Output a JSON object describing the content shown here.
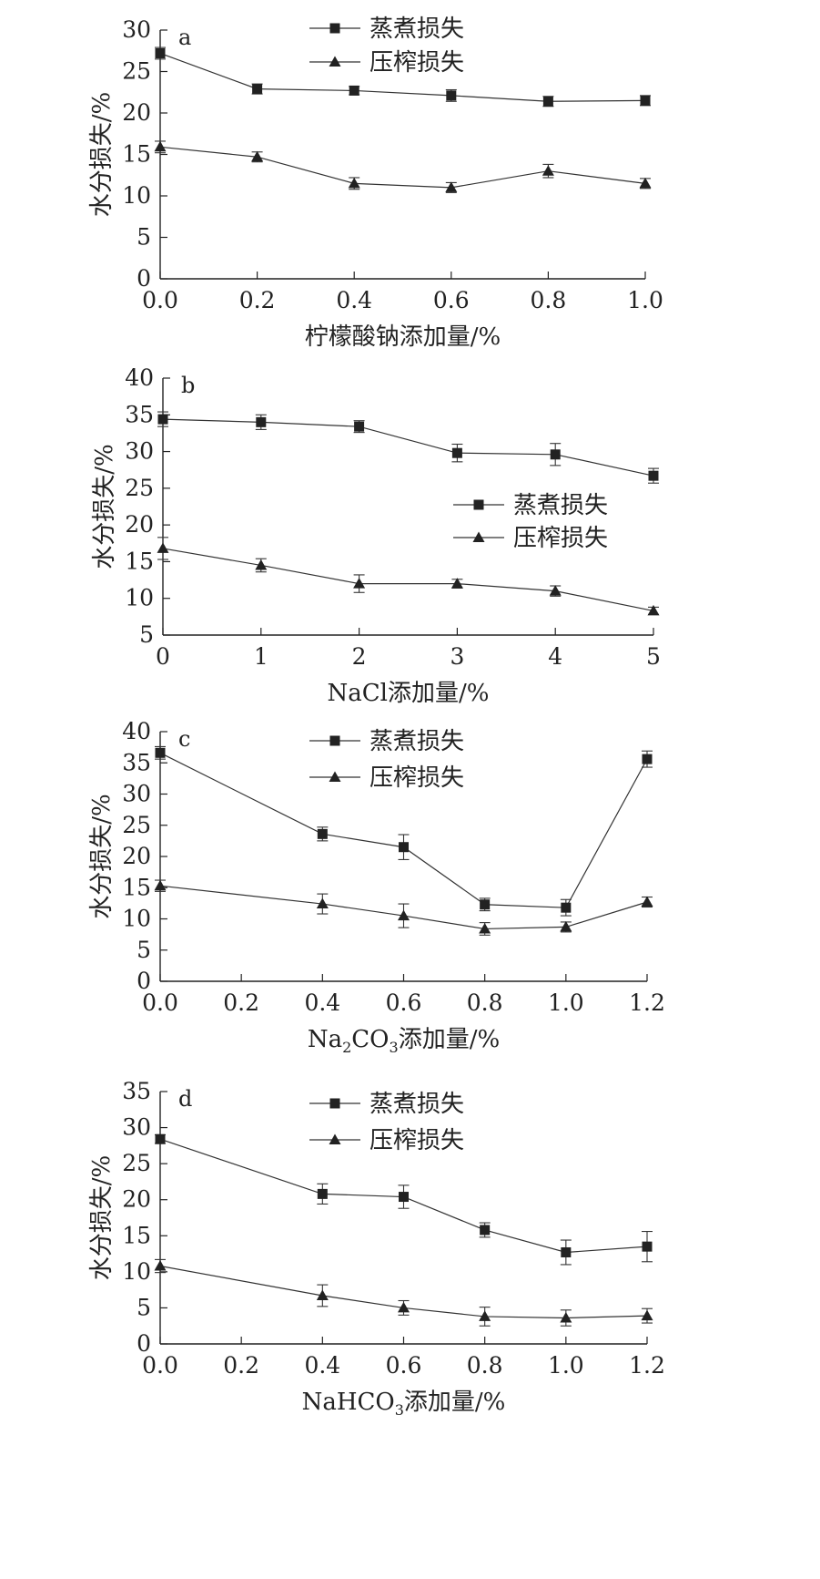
{
  "chart_data": [
    {
      "type": "line",
      "panel_label": "a",
      "xlabel": "柠檬酸钠添加量/%",
      "ylabel": "水分损失/%",
      "x": [
        0.0,
        0.2,
        0.4,
        0.6,
        0.8,
        1.0
      ],
      "xticks": [
        "0.0",
        "0.2",
        "0.4",
        "0.6",
        "0.8",
        "1.0"
      ],
      "xlim": [
        0,
        1.0
      ],
      "ylim": [
        0,
        30
      ],
      "yticks": [
        "0",
        "5",
        "10",
        "15",
        "20",
        "25",
        "30"
      ],
      "legend_position": "top-center",
      "series": [
        {
          "name": "蒸煮损失",
          "marker": "square",
          "values": [
            27.2,
            22.9,
            22.7,
            22.1,
            21.4,
            21.5
          ],
          "errors": [
            0.7,
            0.6,
            0.5,
            0.7,
            0.6,
            0.6
          ]
        },
        {
          "name": "压榨损失",
          "marker": "triangle",
          "values": [
            15.9,
            14.7,
            11.5,
            11.0,
            13.0,
            11.5
          ],
          "errors": [
            0.7,
            0.6,
            0.7,
            0.6,
            0.8,
            0.6
          ]
        }
      ]
    },
    {
      "type": "line",
      "panel_label": "b",
      "xlabel": "NaCl添加量/%",
      "ylabel": "水分损失/%",
      "x": [
        0,
        1,
        2,
        3,
        4,
        5
      ],
      "xticks": [
        "0",
        "1",
        "2",
        "3",
        "4",
        "5"
      ],
      "xlim": [
        0,
        5
      ],
      "ylim": [
        5,
        40
      ],
      "yticks": [
        "5",
        "10",
        "15",
        "20",
        "25",
        "30",
        "35",
        "40"
      ],
      "legend_position": "center-right",
      "series": [
        {
          "name": "蒸煮损失",
          "marker": "square",
          "values": [
            34.4,
            34.0,
            33.4,
            29.8,
            29.6,
            26.7
          ],
          "errors": [
            1.0,
            1.0,
            0.8,
            1.2,
            1.5,
            1.0
          ]
        },
        {
          "name": "压榨损失",
          "marker": "triangle",
          "values": [
            16.8,
            14.5,
            12.0,
            12.0,
            11.0,
            8.3
          ],
          "errors": [
            1.5,
            0.9,
            1.2,
            0.6,
            0.7,
            0.5
          ]
        }
      ]
    },
    {
      "type": "line",
      "panel_label": "c",
      "xlabel_parts": [
        "Na",
        "2",
        "CO",
        "3",
        "添加量/%"
      ],
      "ylabel": "水分损失/%",
      "x": [
        0.0,
        0.4,
        0.6,
        0.8,
        1.0,
        1.2
      ],
      "xticks": [
        "0.0",
        "0.2",
        "0.4",
        "0.6",
        "0.8",
        "1.0",
        "1.2"
      ],
      "xlim": [
        0,
        1.2
      ],
      "ylim": [
        0,
        40
      ],
      "yticks": [
        "0",
        "5",
        "10",
        "15",
        "20",
        "25",
        "30",
        "35",
        "40"
      ],
      "legend_position": "top-center",
      "series": [
        {
          "name": "蒸煮损失",
          "marker": "square",
          "values": [
            36.6,
            23.6,
            21.5,
            12.3,
            11.8,
            35.6
          ],
          "errors": [
            1.0,
            1.1,
            2.0,
            1.0,
            1.3,
            1.3
          ]
        },
        {
          "name": "压榨损失",
          "marker": "triangle",
          "values": [
            15.3,
            12.4,
            10.5,
            8.4,
            8.7,
            12.7
          ],
          "errors": [
            0.9,
            1.6,
            1.9,
            1.0,
            0.8,
            0.8
          ]
        }
      ]
    },
    {
      "type": "line",
      "panel_label": "d",
      "xlabel_parts": [
        "NaHCO",
        "3",
        "添加量/%"
      ],
      "ylabel": "水分损失/%",
      "x": [
        0.0,
        0.4,
        0.6,
        0.8,
        1.0,
        1.2
      ],
      "xticks": [
        "0.0",
        "0.2",
        "0.4",
        "0.6",
        "0.8",
        "1.0",
        "1.2"
      ],
      "xlim": [
        0,
        1.2
      ],
      "ylim": [
        0,
        35
      ],
      "yticks": [
        "0",
        "5",
        "10",
        "15",
        "20",
        "25",
        "30",
        "35"
      ],
      "legend_position": "top-center",
      "series": [
        {
          "name": "蒸煮损失",
          "marker": "square",
          "values": [
            28.4,
            20.8,
            20.4,
            15.8,
            12.7,
            13.5
          ],
          "errors": [
            0.6,
            1.4,
            1.6,
            1.0,
            1.7,
            2.1
          ]
        },
        {
          "name": "压榨损失",
          "marker": "triangle",
          "values": [
            10.8,
            6.7,
            5.0,
            3.8,
            3.6,
            3.9
          ],
          "errors": [
            0.9,
            1.5,
            1.0,
            1.3,
            1.1,
            1.0
          ]
        }
      ]
    }
  ]
}
